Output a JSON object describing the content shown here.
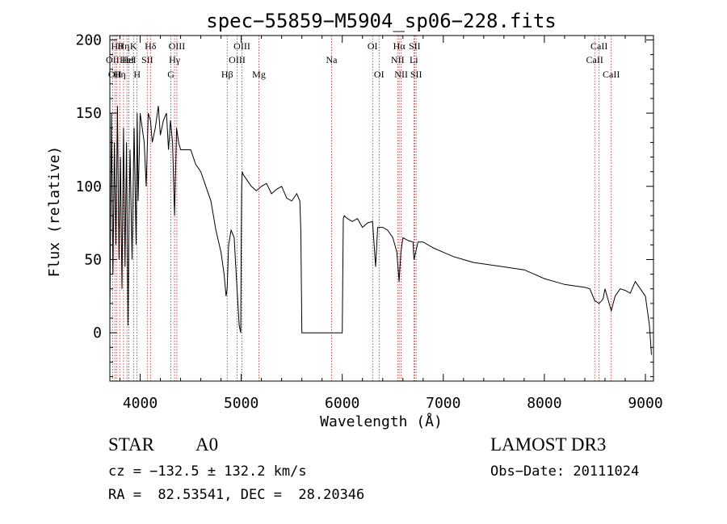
{
  "chart_data": {
    "type": "line",
    "title": "spec−55859−M5904_sp06−228.fits",
    "xlabel": "Wavelength (Å)",
    "ylabel": "Flux (relative)",
    "xlim": [
      3700,
      9080
    ],
    "ylim": [
      -33,
      203
    ],
    "xticks": [
      4000,
      5000,
      6000,
      7000,
      8000,
      9000
    ],
    "yticks": [
      0,
      50,
      100,
      150,
      200
    ],
    "tick_labels_x": [
      "4000",
      "5000",
      "6000",
      "7000",
      "8000",
      "9000"
    ],
    "tick_labels_y": [
      "0",
      "50",
      "100",
      "150",
      "200"
    ],
    "series": [
      {
        "name": "flux",
        "x": [
          3700,
          3715,
          3730,
          3745,
          3760,
          3775,
          3790,
          3805,
          3820,
          3835,
          3850,
          3865,
          3880,
          3890,
          3900,
          3920,
          3940,
          3960,
          3970,
          3980,
          4000,
          4020,
          4040,
          4060,
          4080,
          4102,
          4120,
          4150,
          4180,
          4200,
          4230,
          4260,
          4280,
          4300,
          4320,
          4340,
          4360,
          4380,
          4400,
          4450,
          4500,
          4550,
          4600,
          4650,
          4700,
          4750,
          4800,
          4830,
          4850,
          4861,
          4875,
          4900,
          4930,
          4950,
          4980,
          4995,
          5000,
          5005,
          5010,
          5020,
          5050,
          5100,
          5150,
          5200,
          5250,
          5300,
          5350,
          5400,
          5450,
          5500,
          5550,
          5580,
          5590,
          5600,
          5700,
          5800,
          5900,
          6000,
          6010,
          6020,
          6050,
          6100,
          6150,
          6200,
          6250,
          6300,
          6330,
          6350,
          6400,
          6450,
          6500,
          6540,
          6563,
          6580,
          6600,
          6650,
          6700,
          6710,
          6750,
          6800,
          6900,
          7000,
          7100,
          7200,
          7300,
          7400,
          7500,
          7600,
          7700,
          7800,
          7900,
          8000,
          8100,
          8200,
          8300,
          8400,
          8450,
          8498,
          8542,
          8580,
          8600,
          8662,
          8700,
          8750,
          8800,
          8850,
          8900,
          8950,
          9000,
          9040,
          9060
        ],
        "y": [
          10,
          150,
          40,
          130,
          60,
          155,
          50,
          120,
          30,
          140,
          45,
          130,
          5,
          80,
          125,
          50,
          140,
          60,
          150,
          90,
          150,
          140,
          130,
          100,
          150,
          145,
          130,
          140,
          155,
          135,
          145,
          150,
          125,
          145,
          130,
          80,
          140,
          130,
          125,
          125,
          125,
          115,
          110,
          100,
          90,
          70,
          55,
          40,
          25,
          30,
          60,
          70,
          65,
          40,
          5,
          0,
          60,
          100,
          110,
          108,
          105,
          100,
          97,
          100,
          102,
          95,
          98,
          100,
          92,
          90,
          95,
          90,
          70,
          0,
          0,
          0,
          0,
          0,
          78,
          80,
          78,
          76,
          78,
          72,
          75,
          76,
          45,
          72,
          72,
          70,
          65,
          55,
          35,
          55,
          65,
          63,
          62,
          50,
          62,
          62,
          58,
          55,
          52,
          50,
          48,
          47,
          46,
          45,
          44,
          43,
          40,
          37,
          35,
          33,
          32,
          31,
          30,
          22,
          20,
          23,
          30,
          15,
          25,
          30,
          29,
          27,
          35,
          30,
          25,
          5,
          -15
        ]
      }
    ],
    "lines": [
      {
        "wavelength": 3727,
        "label": "OII",
        "row": 2
      },
      {
        "wavelength": 3750,
        "label": "OII",
        "row": 3
      },
      {
        "wavelength": 3770,
        "label": "Hθ",
        "row": 1
      },
      {
        "wavelength": 3798,
        "label": "Hη",
        "row": 3
      },
      {
        "wavelength": 3835,
        "label": "Hη",
        "row": 1
      },
      {
        "wavelength": 3869,
        "label": "HeI",
        "row": 2
      },
      {
        "wavelength": 3889,
        "label": "HeI",
        "row": 2
      },
      {
        "wavelength": 3934,
        "label": "K",
        "row": 1
      },
      {
        "wavelength": 3969,
        "label": "H",
        "row": 3
      },
      {
        "wavelength": 4070,
        "label": "SII",
        "row": 2
      },
      {
        "wavelength": 4102,
        "label": "Hδ",
        "row": 1
      },
      {
        "wavelength": 4304,
        "label": "G",
        "row": 3
      },
      {
        "wavelength": 4340,
        "label": "Hγ",
        "row": 2
      },
      {
        "wavelength": 4363,
        "label": "OIII",
        "row": 1
      },
      {
        "wavelength": 4861,
        "label": "Hβ",
        "row": 3
      },
      {
        "wavelength": 4959,
        "label": "OIII",
        "row": 2
      },
      {
        "wavelength": 5007,
        "label": "OIII",
        "row": 1
      },
      {
        "wavelength": 5175,
        "label": "Mg",
        "row": 3
      },
      {
        "wavelength": 5894,
        "label": "Na",
        "row": 2
      },
      {
        "wavelength": 6300,
        "label": "OI",
        "row": 1
      },
      {
        "wavelength": 6364,
        "label": "OI",
        "row": 3
      },
      {
        "wavelength": 6548,
        "label": "NII",
        "row": 2
      },
      {
        "wavelength": 6563,
        "label": "Hα",
        "row": 1
      },
      {
        "wavelength": 6583,
        "label": "NII",
        "row": 3
      },
      {
        "wavelength": 6708,
        "label": "Li",
        "row": 2
      },
      {
        "wavelength": 6716,
        "label": "SII",
        "row": 1
      },
      {
        "wavelength": 6731,
        "label": "SII",
        "row": 3
      },
      {
        "wavelength": 8498,
        "label": "CaII",
        "row": 2
      },
      {
        "wavelength": 8542,
        "label": "CaII",
        "row": 1
      },
      {
        "wavelength": 8662,
        "label": "CaII",
        "row": 3
      }
    ]
  },
  "info": {
    "class": "STAR",
    "subclass": "A0",
    "survey": "LAMOST DR3",
    "cz": "cz = −132.5 ± 132.2 km/s",
    "obs_date": "Obs−Date: 20111024",
    "coords": "RA =  82.53541, DEC =  28.20346"
  },
  "colors": {
    "axes": "#000000",
    "spectrum": "#000000",
    "line_markers": "#b22222"
  }
}
